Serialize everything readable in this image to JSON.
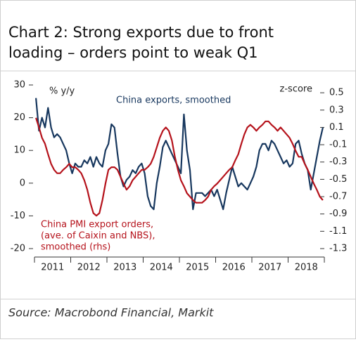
{
  "chart_data": {
    "type": "line",
    "title": [
      "Chart 2: Strong exports due to front",
      "loading – orders point to weak Q1"
    ],
    "source": "Source: Macrobond Financial, Markit",
    "ylabel": "% y/y",
    "y2label": "z-score",
    "categories": [
      null,
      null,
      null,
      null,
      null,
      null,
      "2011",
      null,
      null,
      null,
      null,
      null,
      null,
      null,
      null,
      null,
      null,
      null,
      "2012",
      null,
      null,
      null,
      null,
      null,
      null,
      null,
      null,
      null,
      null,
      null,
      "2013",
      null,
      null,
      null,
      null,
      null,
      null,
      null,
      null,
      null,
      null,
      null,
      "2014",
      null,
      null,
      null,
      null,
      null,
      null,
      null,
      null,
      null,
      null,
      null,
      "2015",
      null,
      null,
      null,
      null,
      null,
      null,
      null,
      null,
      null,
      null,
      null,
      "2016",
      null,
      null,
      null,
      null,
      null,
      null,
      null,
      null,
      null,
      null,
      null,
      "2017",
      null,
      null,
      null,
      null,
      null,
      null,
      null,
      null,
      null,
      null,
      null,
      "2018",
      null,
      null,
      null,
      null,
      null
    ],
    "series": [
      {
        "name": [
          "China exports, smoothed"
        ],
        "color": "#17375e",
        "values": [
          26,
          16,
          20,
          17,
          23,
          17,
          14,
          15,
          14,
          12,
          10,
          6,
          3,
          6,
          5,
          5,
          7,
          6,
          8,
          5,
          8,
          6,
          5,
          10,
          12,
          18,
          17,
          9,
          2,
          -1,
          1,
          2,
          4,
          3,
          5,
          6,
          3,
          -4,
          -7,
          -8,
          0,
          5,
          11,
          13,
          11,
          9,
          7,
          5,
          3,
          21,
          10,
          4,
          -8,
          -3,
          -3,
          -3,
          -4,
          -3,
          -2,
          -4,
          -2,
          -5,
          -8,
          -3,
          1,
          5,
          2,
          -1,
          0,
          -1,
          -2,
          0,
          2,
          5,
          10,
          12,
          12,
          10,
          13,
          12,
          10,
          8,
          6,
          7,
          5,
          6,
          12,
          13,
          9,
          6,
          4,
          -2,
          3,
          8,
          13,
          17
        ]
      },
      {
        "name": [
          "China PMI export orders,",
          "(ave. of Caixin and NBS),",
          "smoothed (rhs)"
        ],
        "color": "#b5121b",
        "axis": "y2",
        "values": [
          0.21,
          0.1,
          -0.02,
          -0.09,
          -0.21,
          -0.32,
          -0.39,
          -0.43,
          -0.43,
          -0.39,
          -0.36,
          -0.32,
          -0.36,
          -0.36,
          -0.39,
          -0.43,
          -0.51,
          -0.62,
          -0.77,
          -0.89,
          -0.92,
          -0.89,
          -0.74,
          -0.55,
          -0.39,
          -0.36,
          -0.36,
          -0.39,
          -0.47,
          -0.55,
          -0.62,
          -0.58,
          -0.51,
          -0.47,
          -0.43,
          -0.39,
          -0.39,
          -0.36,
          -0.32,
          -0.24,
          -0.13,
          -0.02,
          0.06,
          0.1,
          0.06,
          -0.05,
          -0.24,
          -0.39,
          -0.51,
          -0.58,
          -0.66,
          -0.7,
          -0.74,
          -0.77,
          -0.77,
          -0.77,
          -0.74,
          -0.7,
          -0.62,
          -0.58,
          -0.55,
          -0.51,
          -0.47,
          -0.43,
          -0.39,
          -0.36,
          -0.28,
          -0.21,
          -0.09,
          0.02,
          0.1,
          0.13,
          0.1,
          0.06,
          0.1,
          0.13,
          0.17,
          0.17,
          0.13,
          0.1,
          0.06,
          0.1,
          0.06,
          0.02,
          -0.02,
          -0.09,
          -0.17,
          -0.24,
          -0.24,
          -0.32,
          -0.39,
          -0.47,
          -0.55,
          -0.62,
          -0.7,
          -0.74
        ]
      }
    ],
    "ylim": [
      -20,
      30
    ],
    "yticks": [
      30,
      20,
      10,
      0,
      -10,
      -20
    ],
    "y2lim": [
      -1.3,
      0.59
    ],
    "y2ticks": [
      0.5,
      0.3,
      0.1,
      -0.1,
      -0.3,
      -0.5,
      -0.7,
      -0.9,
      -1.1,
      -1.3
    ]
  }
}
